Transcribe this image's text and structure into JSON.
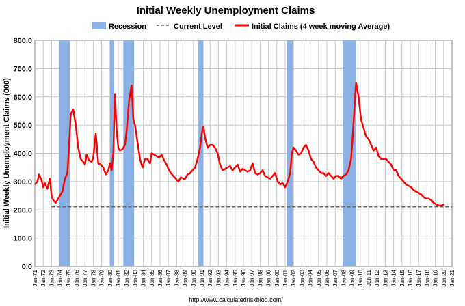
{
  "chart_data": {
    "type": "line",
    "title": "Initial Weekly Unemployment Claims",
    "ylabel": "Initial Weekly Unemployment Claims (000)",
    "xlabel": "",
    "source": "http://www.calculatedriskblog.com/",
    "ylim": [
      0,
      800
    ],
    "xlim": [
      1971.0,
      2021.0
    ],
    "yticks": [
      "0.0",
      "100.0",
      "200.0",
      "300.0",
      "400.0",
      "500.0",
      "600.0",
      "700.0",
      "800.0"
    ],
    "xticks": [
      "Jan-71",
      "Jan-72",
      "Jan-73",
      "Jan-74",
      "Jan-75",
      "Jan-76",
      "Jan-77",
      "Jan-78",
      "Jan-79",
      "Jan-80",
      "Jan-81",
      "Jan-82",
      "Jan-83",
      "Jan-84",
      "Jan-85",
      "Jan-86",
      "Jan-87",
      "Jan-88",
      "Jan-89",
      "Jan-90",
      "Jan-91",
      "Jan-92",
      "Jan-93",
      "Jan-94",
      "Jan-95",
      "Jan-96",
      "Jan-97",
      "Jan-98",
      "Jan-99",
      "Jan-00",
      "Jan-01",
      "Jan-02",
      "Jan-03",
      "Jan-04",
      "Jan-05",
      "Jan-06",
      "Jan-07",
      "Jan-08",
      "Jan-09",
      "Jan-10",
      "Jan-11",
      "Jan-12",
      "Jan-13",
      "Jan-14",
      "Jan-15",
      "Jan-16",
      "Jan-17",
      "Jan-18",
      "Jan-19",
      "Jan-20",
      "Jan-21"
    ],
    "legend": [
      {
        "label": "Recession",
        "kind": "bar",
        "color": "#8bb1e4"
      },
      {
        "label": "Current Level",
        "kind": "dashed",
        "color": "#666666"
      },
      {
        "label": "Initial Claims (4 week moving Average)",
        "kind": "line",
        "color": "#ff0000"
      }
    ],
    "recessions": [
      {
        "start": 1973.9,
        "end": 1975.2
      },
      {
        "start": 1980.0,
        "end": 1980.5
      },
      {
        "start": 1981.6,
        "end": 1982.9
      },
      {
        "start": 1990.6,
        "end": 1991.2
      },
      {
        "start": 2001.2,
        "end": 2001.9
      },
      {
        "start": 2007.9,
        "end": 2009.5
      }
    ],
    "current_level": {
      "value": 211,
      "start": 1973.0,
      "end": 2021.0
    },
    "series": [
      {
        "name": "Initial Claims (4 week moving Average)",
        "color": "#ff0000",
        "x": [
          1971.0,
          1971.3,
          1971.5,
          1971.8,
          1972.0,
          1972.2,
          1972.5,
          1972.8,
          1973.0,
          1973.2,
          1973.5,
          1973.8,
          1974.0,
          1974.3,
          1974.6,
          1974.9,
          1975.1,
          1975.3,
          1975.6,
          1975.9,
          1976.2,
          1976.5,
          1976.8,
          1977.0,
          1977.2,
          1977.5,
          1977.8,
          1978.0,
          1978.3,
          1978.6,
          1978.9,
          1979.2,
          1979.5,
          1979.8,
          1980.0,
          1980.2,
          1980.4,
          1980.6,
          1980.8,
          1981.0,
          1981.2,
          1981.5,
          1981.8,
          1982.0,
          1982.3,
          1982.6,
          1982.8,
          1983.0,
          1983.3,
          1983.6,
          1983.9,
          1984.2,
          1984.5,
          1984.8,
          1985.0,
          1985.3,
          1985.6,
          1985.9,
          1986.2,
          1986.5,
          1986.8,
          1987.0,
          1987.3,
          1987.6,
          1987.9,
          1988.2,
          1988.5,
          1988.8,
          1989.0,
          1989.3,
          1989.6,
          1989.9,
          1990.2,
          1990.5,
          1990.8,
          1991.0,
          1991.2,
          1991.4,
          1991.7,
          1992.0,
          1992.3,
          1992.6,
          1992.9,
          1993.2,
          1993.5,
          1993.8,
          1994.1,
          1994.4,
          1994.7,
          1995.0,
          1995.3,
          1995.6,
          1995.9,
          1996.2,
          1996.5,
          1996.8,
          1997.1,
          1997.4,
          1997.7,
          1998.0,
          1998.3,
          1998.6,
          1998.9,
          1999.2,
          1999.5,
          1999.8,
          2000.1,
          2000.4,
          2000.7,
          2001.0,
          2001.3,
          2001.6,
          2001.8,
          2002.0,
          2002.3,
          2002.6,
          2002.9,
          2003.2,
          2003.5,
          2003.8,
          2004.1,
          2004.4,
          2004.7,
          2005.0,
          2005.3,
          2005.6,
          2005.9,
          2006.2,
          2006.5,
          2006.8,
          2007.1,
          2007.4,
          2007.7,
          2008.0,
          2008.3,
          2008.6,
          2008.9,
          2009.1,
          2009.3,
          2009.5,
          2009.8,
          2010.1,
          2010.4,
          2010.7,
          2011.0,
          2011.3,
          2011.6,
          2011.9,
          2012.2,
          2012.5,
          2012.8,
          2013.1,
          2013.4,
          2013.7,
          2014.0,
          2014.3,
          2014.6,
          2014.9,
          2015.2,
          2015.5,
          2015.8,
          2016.1,
          2016.4,
          2016.7,
          2017.0,
          2017.3,
          2017.6,
          2017.9,
          2018.2,
          2018.5,
          2018.8,
          2019.1,
          2019.4,
          2019.7,
          2019.9,
          2020.1
        ],
        "values": [
          290,
          300,
          325,
          305,
          280,
          295,
          275,
          310,
          250,
          235,
          225,
          240,
          250,
          265,
          310,
          330,
          430,
          540,
          555,
          500,
          420,
          380,
          370,
          360,
          395,
          375,
          370,
          385,
          470,
          365,
          360,
          350,
          325,
          340,
          365,
          340,
          400,
          610,
          480,
          420,
          410,
          415,
          430,
          480,
          590,
          640,
          520,
          500,
          440,
          380,
          350,
          380,
          380,
          365,
          400,
          395,
          390,
          385,
          395,
          375,
          360,
          345,
          330,
          320,
          310,
          300,
          315,
          310,
          310,
          325,
          330,
          340,
          350,
          380,
          420,
          470,
          495,
          455,
          420,
          430,
          430,
          420,
          400,
          360,
          340,
          345,
          350,
          355,
          340,
          350,
          360,
          335,
          345,
          340,
          335,
          340,
          365,
          330,
          325,
          330,
          340,
          320,
          315,
          310,
          320,
          330,
          300,
          290,
          295,
          280,
          300,
          330,
          400,
          420,
          410,
          395,
          400,
          420,
          430,
          410,
          380,
          370,
          350,
          340,
          330,
          330,
          320,
          330,
          320,
          310,
          320,
          320,
          310,
          320,
          325,
          340,
          380,
          460,
          560,
          650,
          600,
          520,
          490,
          460,
          450,
          430,
          410,
          420,
          390,
          380,
          380,
          380,
          370,
          360,
          340,
          340,
          320,
          310,
          300,
          290,
          285,
          280,
          270,
          265,
          260,
          255,
          245,
          240,
          240,
          235,
          225,
          220,
          215,
          215,
          218,
          220
        ]
      }
    ]
  }
}
